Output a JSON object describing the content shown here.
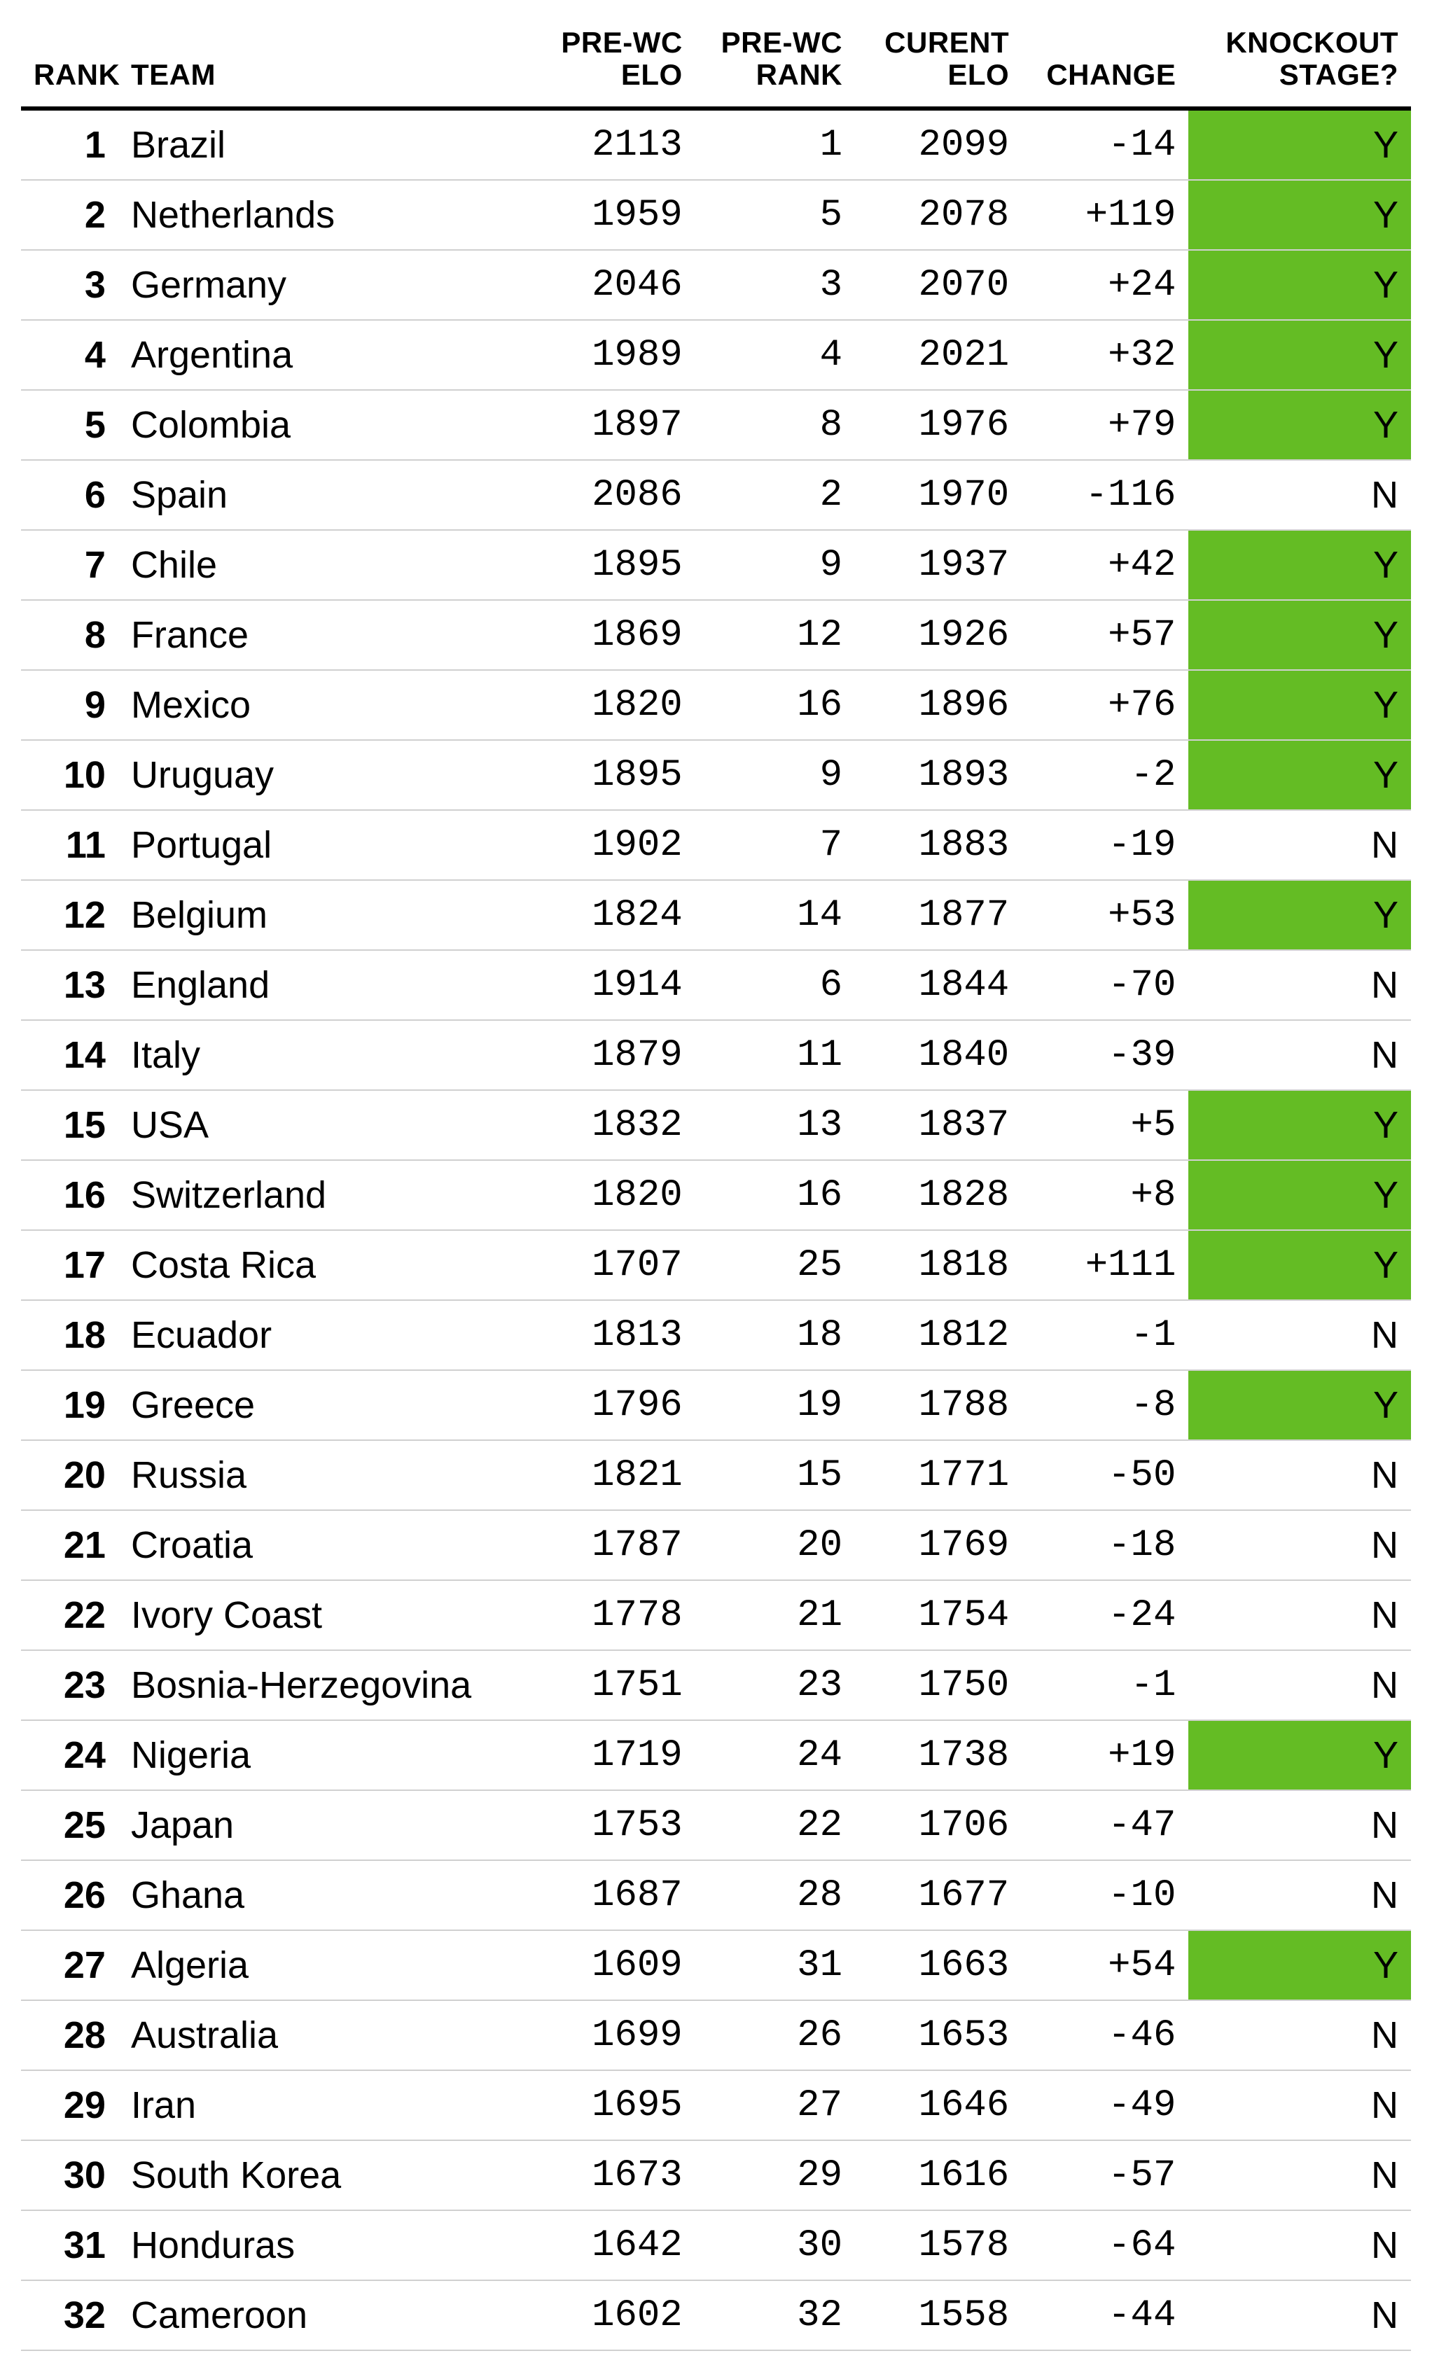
{
  "table": {
    "type": "table",
    "background_color": "#ffffff",
    "border_color": "#d0d0d0",
    "header_border_color": "#000000",
    "text_color": "#000000",
    "knockout_yes_bg": "#64bc24",
    "header_fontsize_pt": 32,
    "body_fontsize_pt": 40,
    "columns": [
      {
        "key": "rank",
        "label": "RANK",
        "align": "right",
        "width_pct": 7
      },
      {
        "key": "team",
        "label": "TEAM",
        "align": "left",
        "width_pct": 30
      },
      {
        "key": "pre_wc_elo",
        "label": "PRE-WC\nELO",
        "align": "right",
        "width_pct": 11.5
      },
      {
        "key": "pre_wc_rank",
        "label": "PRE-WC\nRANK",
        "align": "right",
        "width_pct": 11.5
      },
      {
        "key": "current_elo",
        "label": "CURENT\nELO",
        "align": "right",
        "width_pct": 12
      },
      {
        "key": "change",
        "label": "CHANGE",
        "align": "right",
        "width_pct": 12
      },
      {
        "key": "knockout",
        "label": "KNOCKOUT\nSTAGE?",
        "align": "right",
        "width_pct": 16
      }
    ],
    "rows": [
      {
        "rank": 1,
        "team": "Brazil",
        "pre_wc_elo": 2113,
        "pre_wc_rank": 1,
        "current_elo": 2099,
        "change": -14,
        "knockout": "Y"
      },
      {
        "rank": 2,
        "team": "Netherlands",
        "pre_wc_elo": 1959,
        "pre_wc_rank": 5,
        "current_elo": 2078,
        "change": 119,
        "knockout": "Y"
      },
      {
        "rank": 3,
        "team": "Germany",
        "pre_wc_elo": 2046,
        "pre_wc_rank": 3,
        "current_elo": 2070,
        "change": 24,
        "knockout": "Y"
      },
      {
        "rank": 4,
        "team": "Argentina",
        "pre_wc_elo": 1989,
        "pre_wc_rank": 4,
        "current_elo": 2021,
        "change": 32,
        "knockout": "Y"
      },
      {
        "rank": 5,
        "team": "Colombia",
        "pre_wc_elo": 1897,
        "pre_wc_rank": 8,
        "current_elo": 1976,
        "change": 79,
        "knockout": "Y"
      },
      {
        "rank": 6,
        "team": "Spain",
        "pre_wc_elo": 2086,
        "pre_wc_rank": 2,
        "current_elo": 1970,
        "change": -116,
        "knockout": "N"
      },
      {
        "rank": 7,
        "team": "Chile",
        "pre_wc_elo": 1895,
        "pre_wc_rank": 9,
        "current_elo": 1937,
        "change": 42,
        "knockout": "Y"
      },
      {
        "rank": 8,
        "team": "France",
        "pre_wc_elo": 1869,
        "pre_wc_rank": 12,
        "current_elo": 1926,
        "change": 57,
        "knockout": "Y"
      },
      {
        "rank": 9,
        "team": "Mexico",
        "pre_wc_elo": 1820,
        "pre_wc_rank": 16,
        "current_elo": 1896,
        "change": 76,
        "knockout": "Y"
      },
      {
        "rank": 10,
        "team": "Uruguay",
        "pre_wc_elo": 1895,
        "pre_wc_rank": 9,
        "current_elo": 1893,
        "change": -2,
        "knockout": "Y"
      },
      {
        "rank": 11,
        "team": "Portugal",
        "pre_wc_elo": 1902,
        "pre_wc_rank": 7,
        "current_elo": 1883,
        "change": -19,
        "knockout": "N"
      },
      {
        "rank": 12,
        "team": "Belgium",
        "pre_wc_elo": 1824,
        "pre_wc_rank": 14,
        "current_elo": 1877,
        "change": 53,
        "knockout": "Y"
      },
      {
        "rank": 13,
        "team": "England",
        "pre_wc_elo": 1914,
        "pre_wc_rank": 6,
        "current_elo": 1844,
        "change": -70,
        "knockout": "N"
      },
      {
        "rank": 14,
        "team": "Italy",
        "pre_wc_elo": 1879,
        "pre_wc_rank": 11,
        "current_elo": 1840,
        "change": -39,
        "knockout": "N"
      },
      {
        "rank": 15,
        "team": "USA",
        "pre_wc_elo": 1832,
        "pre_wc_rank": 13,
        "current_elo": 1837,
        "change": 5,
        "knockout": "Y"
      },
      {
        "rank": 16,
        "team": "Switzerland",
        "pre_wc_elo": 1820,
        "pre_wc_rank": 16,
        "current_elo": 1828,
        "change": 8,
        "knockout": "Y"
      },
      {
        "rank": 17,
        "team": "Costa Rica",
        "pre_wc_elo": 1707,
        "pre_wc_rank": 25,
        "current_elo": 1818,
        "change": 111,
        "knockout": "Y"
      },
      {
        "rank": 18,
        "team": "Ecuador",
        "pre_wc_elo": 1813,
        "pre_wc_rank": 18,
        "current_elo": 1812,
        "change": -1,
        "knockout": "N"
      },
      {
        "rank": 19,
        "team": "Greece",
        "pre_wc_elo": 1796,
        "pre_wc_rank": 19,
        "current_elo": 1788,
        "change": -8,
        "knockout": "Y"
      },
      {
        "rank": 20,
        "team": "Russia",
        "pre_wc_elo": 1821,
        "pre_wc_rank": 15,
        "current_elo": 1771,
        "change": -50,
        "knockout": "N"
      },
      {
        "rank": 21,
        "team": "Croatia",
        "pre_wc_elo": 1787,
        "pre_wc_rank": 20,
        "current_elo": 1769,
        "change": -18,
        "knockout": "N"
      },
      {
        "rank": 22,
        "team": "Ivory Coast",
        "pre_wc_elo": 1778,
        "pre_wc_rank": 21,
        "current_elo": 1754,
        "change": -24,
        "knockout": "N"
      },
      {
        "rank": 23,
        "team": "Bosnia-Herzegovina",
        "pre_wc_elo": 1751,
        "pre_wc_rank": 23,
        "current_elo": 1750,
        "change": -1,
        "knockout": "N"
      },
      {
        "rank": 24,
        "team": "Nigeria",
        "pre_wc_elo": 1719,
        "pre_wc_rank": 24,
        "current_elo": 1738,
        "change": 19,
        "knockout": "Y"
      },
      {
        "rank": 25,
        "team": "Japan",
        "pre_wc_elo": 1753,
        "pre_wc_rank": 22,
        "current_elo": 1706,
        "change": -47,
        "knockout": "N"
      },
      {
        "rank": 26,
        "team": "Ghana",
        "pre_wc_elo": 1687,
        "pre_wc_rank": 28,
        "current_elo": 1677,
        "change": -10,
        "knockout": "N"
      },
      {
        "rank": 27,
        "team": "Algeria",
        "pre_wc_elo": 1609,
        "pre_wc_rank": 31,
        "current_elo": 1663,
        "change": 54,
        "knockout": "Y"
      },
      {
        "rank": 28,
        "team": "Australia",
        "pre_wc_elo": 1699,
        "pre_wc_rank": 26,
        "current_elo": 1653,
        "change": -46,
        "knockout": "N"
      },
      {
        "rank": 29,
        "team": "Iran",
        "pre_wc_elo": 1695,
        "pre_wc_rank": 27,
        "current_elo": 1646,
        "change": -49,
        "knockout": "N"
      },
      {
        "rank": 30,
        "team": "South Korea",
        "pre_wc_elo": 1673,
        "pre_wc_rank": 29,
        "current_elo": 1616,
        "change": -57,
        "knockout": "N"
      },
      {
        "rank": 31,
        "team": "Honduras",
        "pre_wc_elo": 1642,
        "pre_wc_rank": 30,
        "current_elo": 1578,
        "change": -64,
        "knockout": "N"
      },
      {
        "rank": 32,
        "team": "Cameroon",
        "pre_wc_elo": 1602,
        "pre_wc_rank": 32,
        "current_elo": 1558,
        "change": -44,
        "knockout": "N"
      }
    ]
  }
}
